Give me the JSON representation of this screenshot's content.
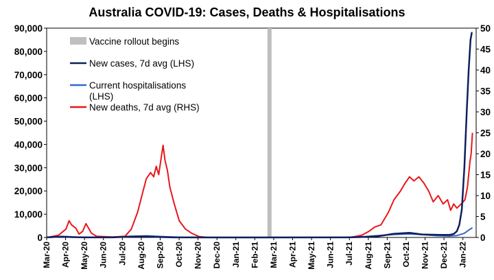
{
  "chart_data": {
    "type": "line",
    "title": "Australia COVID-19: Cases, Deaths & Hospitalisations",
    "x_ticks": [
      "Mar-20",
      "Apr-20",
      "May-20",
      "Jun-20",
      "Jul-20",
      "Aug-20",
      "Sep-20",
      "Oct-20",
      "Nov-20",
      "Dec-20",
      "Jan-21",
      "Feb-21",
      "Mar-21",
      "Apr-21",
      "May-21",
      "Jun-21",
      "Jul-21",
      "Aug-21",
      "Sep-21",
      "Oct-21",
      "Nov-21",
      "Dec-21",
      "Jan-22"
    ],
    "x_range": [
      "2020-03-01",
      "2022-01-20"
    ],
    "y_left": {
      "min": 0,
      "max": 90000,
      "ticks": [
        "0",
        "10,000",
        "20,000",
        "30,000",
        "40,000",
        "50,000",
        "60,000",
        "70,000",
        "80,000",
        "90,000"
      ]
    },
    "y_right": {
      "min": 0,
      "max": 50,
      "ticks": [
        "0",
        "5",
        "10",
        "15",
        "20",
        "25",
        "30",
        "35",
        "40",
        "45",
        "50"
      ]
    },
    "vaccine_rollout": {
      "label": "Vaccine rollout begins",
      "date": "2021-02-22",
      "color": "#bfbfbf"
    },
    "series": [
      {
        "name": "New cases, 7d avg (LHS)",
        "axis": "left",
        "color": "#0d1f5c",
        "points": [
          [
            "2020-03-01",
            20
          ],
          [
            "2020-03-25",
            350
          ],
          [
            "2020-04-10",
            150
          ],
          [
            "2020-05-01",
            20
          ],
          [
            "2020-06-15",
            30
          ],
          [
            "2020-07-15",
            350
          ],
          [
            "2020-08-05",
            450
          ],
          [
            "2020-08-25",
            200
          ],
          [
            "2020-09-20",
            30
          ],
          [
            "2020-12-01",
            10
          ],
          [
            "2021-06-25",
            20
          ],
          [
            "2021-07-15",
            150
          ],
          [
            "2021-08-15",
            500
          ],
          [
            "2021-09-10",
            1600
          ],
          [
            "2021-10-05",
            2000
          ],
          [
            "2021-10-25",
            1300
          ],
          [
            "2021-11-25",
            1100
          ],
          [
            "2021-12-08",
            1100
          ],
          [
            "2021-12-15",
            1500
          ],
          [
            "2021-12-20",
            2700
          ],
          [
            "2021-12-24",
            5500
          ],
          [
            "2021-12-28",
            12000
          ],
          [
            "2022-01-01",
            30000
          ],
          [
            "2022-01-05",
            55000
          ],
          [
            "2022-01-08",
            72000
          ],
          [
            "2022-01-11",
            85000
          ],
          [
            "2022-01-13",
            88000
          ],
          [
            "2022-01-14",
            88000
          ]
        ]
      },
      {
        "name": "Current hospitalisations\n(LHS)",
        "axis": "left",
        "color": "#3366cc",
        "points": [
          [
            "2020-03-01",
            0
          ],
          [
            "2020-04-01",
            400
          ],
          [
            "2020-04-20",
            150
          ],
          [
            "2020-06-01",
            30
          ],
          [
            "2020-07-15",
            500
          ],
          [
            "2020-08-10",
            700
          ],
          [
            "2020-09-01",
            400
          ],
          [
            "2020-10-01",
            80
          ],
          [
            "2020-12-01",
            30
          ],
          [
            "2021-06-25",
            30
          ],
          [
            "2021-07-20",
            250
          ],
          [
            "2021-08-15",
            800
          ],
          [
            "2021-09-10",
            1250
          ],
          [
            "2021-10-05",
            1500
          ],
          [
            "2021-10-20",
            1300
          ],
          [
            "2021-11-15",
            800
          ],
          [
            "2021-12-08",
            600
          ],
          [
            "2021-12-20",
            800
          ],
          [
            "2022-01-01",
            1800
          ],
          [
            "2022-01-10",
            3500
          ],
          [
            "2022-01-14",
            4200
          ]
        ]
      },
      {
        "name": "New deaths, 7d avg (RHS)",
        "axis": "right",
        "color": "#e8161b",
        "points": [
          [
            "2020-03-01",
            0
          ],
          [
            "2020-03-20",
            0.5
          ],
          [
            "2020-04-01",
            2.0
          ],
          [
            "2020-04-06",
            4.0
          ],
          [
            "2020-04-10",
            3.0
          ],
          [
            "2020-04-17",
            2.2
          ],
          [
            "2020-04-22",
            0.8
          ],
          [
            "2020-04-28",
            1.5
          ],
          [
            "2020-05-03",
            3.3
          ],
          [
            "2020-05-07",
            2.3
          ],
          [
            "2020-05-12",
            1.0
          ],
          [
            "2020-05-20",
            0.3
          ],
          [
            "2020-06-15",
            0.1
          ],
          [
            "2020-07-05",
            0.3
          ],
          [
            "2020-07-15",
            2.0
          ],
          [
            "2020-07-25",
            6.0
          ],
          [
            "2020-08-01",
            10.0
          ],
          [
            "2020-08-08",
            14.0
          ],
          [
            "2020-08-15",
            15.5
          ],
          [
            "2020-08-20",
            14.5
          ],
          [
            "2020-08-24",
            17.0
          ],
          [
            "2020-08-28",
            15.0
          ],
          [
            "2020-09-01",
            19.0
          ],
          [
            "2020-09-04",
            22.0
          ],
          [
            "2020-09-07",
            18.5
          ],
          [
            "2020-09-11",
            16.0
          ],
          [
            "2020-09-15",
            12.0
          ],
          [
            "2020-09-22",
            8.0
          ],
          [
            "2020-09-30",
            4.0
          ],
          [
            "2020-10-10",
            2.0
          ],
          [
            "2020-10-20",
            1.0
          ],
          [
            "2020-11-01",
            0.2
          ],
          [
            "2020-11-15",
            0
          ],
          [
            "2021-07-01",
            0
          ],
          [
            "2021-07-20",
            0.5
          ],
          [
            "2021-08-01",
            1.5
          ],
          [
            "2021-08-10",
            2.5
          ],
          [
            "2021-08-20",
            3.0
          ],
          [
            "2021-09-01",
            6.0
          ],
          [
            "2021-09-10",
            9.0
          ],
          [
            "2021-09-20",
            11.0
          ],
          [
            "2021-09-28",
            13.0
          ],
          [
            "2021-10-05",
            14.5
          ],
          [
            "2021-10-12",
            13.5
          ],
          [
            "2021-10-20",
            14.5
          ],
          [
            "2021-10-28",
            13.0
          ],
          [
            "2021-11-05",
            11.0
          ],
          [
            "2021-11-12",
            8.5
          ],
          [
            "2021-11-20",
            10.0
          ],
          [
            "2021-11-28",
            8.0
          ],
          [
            "2021-12-05",
            9.0
          ],
          [
            "2021-12-10",
            6.5
          ],
          [
            "2021-12-15",
            8.0
          ],
          [
            "2021-12-20",
            7.0
          ],
          [
            "2021-12-27",
            8.0
          ],
          [
            "2022-01-02",
            9.0
          ],
          [
            "2022-01-06",
            12.0
          ],
          [
            "2022-01-10",
            18.0
          ],
          [
            "2022-01-12",
            20.0
          ],
          [
            "2022-01-14",
            25.0
          ]
        ]
      }
    ],
    "legend_position": "top-left",
    "grid": false
  }
}
